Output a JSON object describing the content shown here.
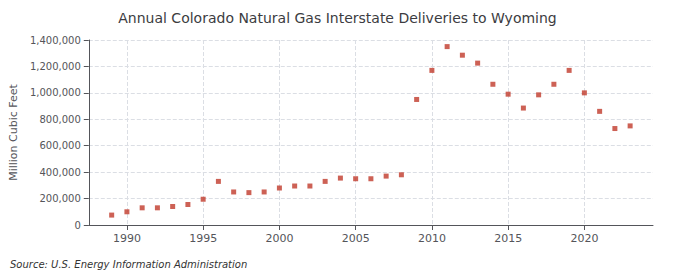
{
  "chart_data": {
    "type": "scatter",
    "title": "Annual Colorado Natural Gas Interstate Deliveries to Wyoming",
    "ylabel": "Million Cubic Feet",
    "source": "Source: U.S. Energy Information Administration",
    "x": [
      1989,
      1990,
      1991,
      1992,
      1993,
      1994,
      1995,
      1996,
      1997,
      1998,
      1999,
      2000,
      2001,
      2002,
      2003,
      2004,
      2005,
      2006,
      2007,
      2008,
      2009,
      2010,
      2011,
      2012,
      2013,
      2014,
      2015,
      2016,
      2017,
      2018,
      2019,
      2020,
      2021,
      2022,
      2023
    ],
    "values": [
      75000,
      100000,
      130000,
      130000,
      140000,
      155000,
      195000,
      330000,
      250000,
      245000,
      250000,
      280000,
      295000,
      295000,
      330000,
      355000,
      350000,
      350000,
      370000,
      380000,
      950000,
      1170000,
      1350000,
      1285000,
      1225000,
      1065000,
      990000,
      885000,
      985000,
      1065000,
      1170000,
      1000000,
      860000,
      730000,
      750000
    ],
    "color": "#c0392b",
    "marker": "square",
    "xlim": [
      1987.5,
      2024.5
    ],
    "xticks": [
      1990,
      1995,
      2000,
      2005,
      2010,
      2015,
      2020
    ],
    "ylim": [
      0,
      1400000
    ],
    "yticks": [
      0,
      {
        "value": 200000,
        "label": "200,000"
      },
      {
        "value": 400000,
        "label": "400,000"
      },
      {
        "value": 600000,
        "label": "600,000"
      },
      {
        "value": 800000,
        "label": "800,000"
      },
      {
        "value": 1000000,
        "label": "1,000,000"
      },
      {
        "value": 1200000,
        "label": "1,200,000"
      },
      {
        "value": 1400000,
        "label": "1,400,000"
      }
    ],
    "grid": true
  }
}
